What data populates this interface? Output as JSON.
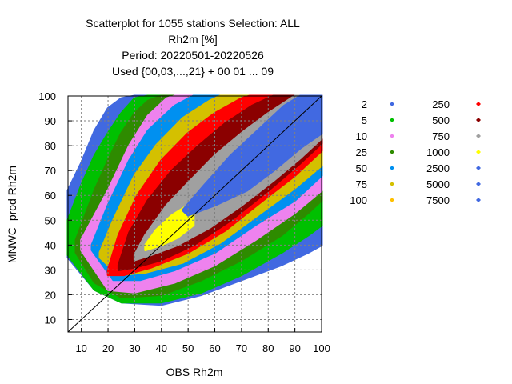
{
  "chart_data": {
    "type": "scatter",
    "title": [
      "Scatterplot for 1055 stations Selection: ALL",
      "Rh2m [%]",
      "Period: 20220501-20220526",
      "Used {00,03,...,21} + 00 01 ... 09"
    ],
    "xlabel": "OBS Rh2m",
    "ylabel": "MNWC_prod Rh2m",
    "xlim": [
      5,
      100
    ],
    "ylim": [
      5,
      100
    ],
    "xticks": [
      10,
      20,
      30,
      40,
      50,
      60,
      70,
      80,
      90,
      100
    ],
    "yticks": [
      10,
      20,
      30,
      40,
      50,
      60,
      70,
      80,
      90,
      100
    ],
    "grid": true,
    "diagonal": true,
    "legend_position": "right",
    "legend": [
      {
        "label": "2",
        "color": "#4169e1"
      },
      {
        "label": "5",
        "color": "#00c000"
      },
      {
        "label": "10",
        "color": "#ee82ee"
      },
      {
        "label": "25",
        "color": "#2e8b00"
      },
      {
        "label": "50",
        "color": "#0090f0"
      },
      {
        "label": "75",
        "color": "#d4c000"
      },
      {
        "label": "100",
        "color": "#ffc000"
      },
      {
        "label": "250",
        "color": "#ff0000"
      },
      {
        "label": "500",
        "color": "#8b0000"
      },
      {
        "label": "750",
        "color": "#a0a0a0"
      },
      {
        "label": "1000",
        "color": "#ffff00"
      },
      {
        "label": "2500",
        "color": "#4169e1"
      },
      {
        "label": "5000",
        "color": "#4169e1"
      },
      {
        "label": "7500",
        "color": "#4169e1"
      }
    ],
    "density_bands": [
      {
        "color": "#4169e1",
        "upper": [
          [
            5,
            62
          ],
          [
            10,
            73
          ],
          [
            15,
            86
          ],
          [
            20,
            95
          ],
          [
            25,
            99
          ],
          [
            30,
            100
          ],
          [
            100,
            100
          ]
        ],
        "lower": [
          [
            5,
            35
          ],
          [
            15,
            22
          ],
          [
            25,
            17
          ],
          [
            40,
            16
          ],
          [
            55,
            20
          ],
          [
            70,
            26
          ],
          [
            85,
            32
          ],
          [
            95,
            37
          ],
          [
            100,
            40
          ]
        ]
      },
      {
        "color": "#00c000",
        "upper": [
          [
            5,
            50
          ],
          [
            10,
            64
          ],
          [
            15,
            76
          ],
          [
            20,
            85
          ],
          [
            25,
            93
          ],
          [
            30,
            99
          ],
          [
            35,
            100
          ],
          [
            100,
            100
          ]
        ],
        "lower": [
          [
            5,
            36
          ],
          [
            15,
            22
          ],
          [
            25,
            17
          ],
          [
            40,
            17
          ],
          [
            55,
            21
          ],
          [
            70,
            28
          ],
          [
            85,
            37
          ],
          [
            95,
            44
          ],
          [
            100,
            48
          ]
        ]
      },
      {
        "color": "#2e8b00",
        "upper": [
          [
            8,
            42
          ],
          [
            15,
            62
          ],
          [
            20,
            74
          ],
          [
            25,
            85
          ],
          [
            30,
            93
          ],
          [
            35,
            98
          ],
          [
            40,
            100
          ],
          [
            100,
            100
          ]
        ],
        "lower": [
          [
            8,
            37
          ],
          [
            15,
            25
          ],
          [
            25,
            19
          ],
          [
            40,
            20
          ],
          [
            55,
            26
          ],
          [
            70,
            34
          ],
          [
            85,
            44
          ],
          [
            95,
            53
          ],
          [
            100,
            58
          ]
        ]
      },
      {
        "color": "#ee82ee",
        "upper": [
          [
            10,
            42
          ],
          [
            20,
            62
          ],
          [
            28,
            80
          ],
          [
            35,
            92
          ],
          [
            42,
            99
          ],
          [
            45,
            100
          ],
          [
            100,
            100
          ]
        ],
        "lower": [
          [
            10,
            38
          ],
          [
            20,
            22
          ],
          [
            30,
            21
          ],
          [
            45,
            25
          ],
          [
            60,
            32
          ],
          [
            75,
            42
          ],
          [
            90,
            53
          ],
          [
            100,
            62
          ]
        ]
      },
      {
        "color": "#0090f0",
        "upper": [
          [
            14,
            40
          ],
          [
            20,
            56
          ],
          [
            28,
            74
          ],
          [
            35,
            86
          ],
          [
            45,
            96
          ],
          [
            52,
            100
          ],
          [
            100,
            100
          ]
        ],
        "lower": [
          [
            14,
            38
          ],
          [
            22,
            26
          ],
          [
            32,
            26
          ],
          [
            45,
            30
          ],
          [
            60,
            37
          ],
          [
            75,
            48
          ],
          [
            90,
            58
          ],
          [
            100,
            68
          ]
        ]
      },
      {
        "color": "#d4c000",
        "upper": [
          [
            17,
            37
          ],
          [
            22,
            50
          ],
          [
            30,
            68
          ],
          [
            38,
            80
          ],
          [
            48,
            91
          ],
          [
            58,
            98
          ],
          [
            62,
            100
          ],
          [
            100,
            100
          ]
        ],
        "lower": [
          [
            17,
            35
          ],
          [
            24,
            28
          ],
          [
            34,
            29
          ],
          [
            48,
            33
          ],
          [
            62,
            41
          ],
          [
            76,
            52
          ],
          [
            90,
            63
          ],
          [
            100,
            72
          ]
        ]
      },
      {
        "color": "#ff0000",
        "upper": [
          [
            20,
            30
          ],
          [
            24,
            44
          ],
          [
            31,
            60
          ],
          [
            40,
            74
          ],
          [
            50,
            85
          ],
          [
            60,
            93
          ],
          [
            70,
            99
          ],
          [
            73,
            100
          ],
          [
            100,
            100
          ]
        ],
        "lower": [
          [
            20,
            28
          ],
          [
            26,
            28
          ],
          [
            36,
            31
          ],
          [
            50,
            37
          ],
          [
            64,
            46
          ],
          [
            78,
            58
          ],
          [
            90,
            68
          ],
          [
            100,
            78
          ]
        ]
      },
      {
        "color": "#8b0000",
        "upper": [
          [
            24,
            32
          ],
          [
            28,
            45
          ],
          [
            35,
            58
          ],
          [
            44,
            70
          ],
          [
            54,
            80
          ],
          [
            64,
            89
          ],
          [
            74,
            96
          ],
          [
            82,
            100
          ],
          [
            100,
            100
          ]
        ],
        "lower": [
          [
            24,
            30
          ],
          [
            30,
            31
          ],
          [
            40,
            34
          ],
          [
            52,
            40
          ],
          [
            66,
            50
          ],
          [
            80,
            62
          ],
          [
            92,
            73
          ],
          [
            100,
            81
          ]
        ]
      },
      {
        "color": "#a0a0a0",
        "upper": [
          [
            30,
            36
          ],
          [
            34,
            44
          ],
          [
            42,
            56
          ],
          [
            50,
            65
          ],
          [
            60,
            76
          ],
          [
            70,
            85
          ],
          [
            80,
            93
          ],
          [
            90,
            100
          ],
          [
            100,
            100
          ]
        ],
        "lower": [
          [
            30,
            34
          ],
          [
            36,
            36
          ],
          [
            46,
            40
          ],
          [
            58,
            47
          ],
          [
            70,
            56
          ],
          [
            82,
            66
          ],
          [
            92,
            75
          ],
          [
            100,
            83
          ]
        ]
      },
      {
        "color": "#ffff00",
        "upper": [
          [
            34,
            40
          ],
          [
            38,
            46
          ],
          [
            44,
            52
          ],
          [
            50,
            56
          ],
          [
            52,
            58
          ]
        ],
        "lower": [
          [
            34,
            38
          ],
          [
            40,
            40
          ],
          [
            46,
            43
          ],
          [
            52,
            48
          ],
          [
            52,
            58
          ]
        ]
      },
      {
        "color": "#4169e1",
        "upper": [
          [
            48,
            54
          ],
          [
            56,
            64
          ],
          [
            66,
            76
          ],
          [
            76,
            86
          ],
          [
            86,
            96
          ],
          [
            92,
            100
          ],
          [
            100,
            100
          ]
        ],
        "lower": [
          [
            50,
            52
          ],
          [
            60,
            56
          ],
          [
            72,
            62
          ],
          [
            82,
            70
          ],
          [
            92,
            79
          ],
          [
            100,
            85
          ]
        ]
      }
    ]
  }
}
